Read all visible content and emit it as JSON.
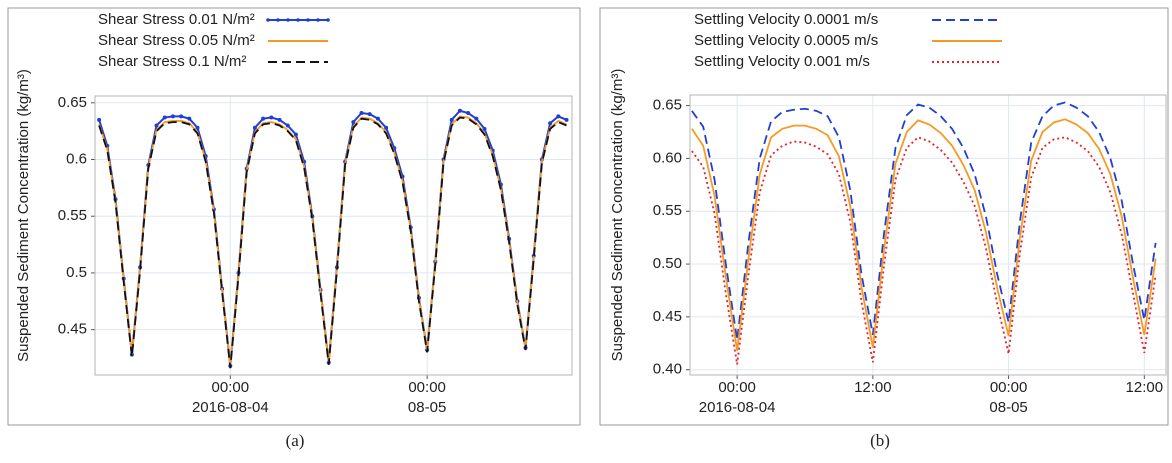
{
  "chart_data": [
    {
      "type": "line",
      "y_label": "Suspended Sediment Concentration (kg/m³)",
      "caption": "(a)",
      "legend": "upper left",
      "grid": true,
      "xlim": [
        "2016-08-03 07:30",
        "2016-08-05 17:40"
      ],
      "ylim": [
        0.41,
        0.656
      ],
      "yticks": [
        0.45,
        0.5,
        0.55,
        0.6,
        0.65
      ],
      "xticks": [
        {
          "value": "2016-08-04 00:00",
          "label": [
            "00:00",
            "2016-08-04"
          ]
        },
        {
          "value": "2016-08-05 00:00",
          "label": [
            "00:00",
            "08-05"
          ]
        }
      ],
      "x": [
        "2016-08-03 08:00",
        "2016-08-03 09:00",
        "2016-08-03 10:00",
        "2016-08-03 11:00",
        "2016-08-03 12:00",
        "2016-08-03 13:00",
        "2016-08-03 14:00",
        "2016-08-03 15:00",
        "2016-08-03 16:00",
        "2016-08-03 17:00",
        "2016-08-03 18:00",
        "2016-08-03 19:00",
        "2016-08-03 20:00",
        "2016-08-03 21:00",
        "2016-08-03 22:00",
        "2016-08-03 23:00",
        "2016-08-04 00:00",
        "2016-08-04 01:00",
        "2016-08-04 02:00",
        "2016-08-04 03:00",
        "2016-08-04 04:00",
        "2016-08-04 05:00",
        "2016-08-04 06:00",
        "2016-08-04 07:00",
        "2016-08-04 08:00",
        "2016-08-04 09:00",
        "2016-08-04 10:00",
        "2016-08-04 11:00",
        "2016-08-04 12:00",
        "2016-08-04 13:00",
        "2016-08-04 14:00",
        "2016-08-04 15:00",
        "2016-08-04 16:00",
        "2016-08-04 17:00",
        "2016-08-04 18:00",
        "2016-08-04 19:00",
        "2016-08-04 20:00",
        "2016-08-04 21:00",
        "2016-08-04 22:00",
        "2016-08-04 23:00",
        "2016-08-05 00:00",
        "2016-08-05 01:00",
        "2016-08-05 02:00",
        "2016-08-05 03:00",
        "2016-08-05 04:00",
        "2016-08-05 05:00",
        "2016-08-05 06:00",
        "2016-08-05 07:00",
        "2016-08-05 08:00",
        "2016-08-05 09:00",
        "2016-08-05 10:00",
        "2016-08-05 11:00",
        "2016-08-05 12:00",
        "2016-08-05 13:00",
        "2016-08-05 14:00",
        "2016-08-05 15:00",
        "2016-08-05 16:00",
        "2016-08-05 17:00"
      ],
      "series": [
        {
          "name": "Shear Stress 0.01 N/m²",
          "color": "#1f3fd6",
          "dash": "solid",
          "marker": true,
          "values": [
            0.635,
            0.612,
            0.565,
            0.495,
            0.428,
            0.505,
            0.595,
            0.63,
            0.637,
            0.638,
            0.638,
            0.636,
            0.628,
            0.603,
            0.556,
            0.486,
            0.418,
            0.5,
            0.592,
            0.628,
            0.636,
            0.637,
            0.635,
            0.63,
            0.622,
            0.598,
            0.55,
            0.485,
            0.421,
            0.505,
            0.598,
            0.633,
            0.641,
            0.64,
            0.636,
            0.628,
            0.61,
            0.585,
            0.54,
            0.478,
            0.432,
            0.51,
            0.6,
            0.635,
            0.643,
            0.641,
            0.636,
            0.627,
            0.608,
            0.578,
            0.53,
            0.475,
            0.434,
            0.515,
            0.6,
            0.632,
            0.638,
            0.635
          ]
        },
        {
          "name": "Shear Stress 0.05 N/m²",
          "color": "#f59a23",
          "dash": "solid",
          "marker": false,
          "values": [
            0.631,
            0.609,
            0.563,
            0.494,
            0.428,
            0.504,
            0.593,
            0.626,
            0.633,
            0.634,
            0.634,
            0.632,
            0.624,
            0.599,
            0.554,
            0.485,
            0.418,
            0.499,
            0.59,
            0.624,
            0.632,
            0.633,
            0.631,
            0.626,
            0.618,
            0.594,
            0.548,
            0.484,
            0.421,
            0.504,
            0.596,
            0.629,
            0.637,
            0.636,
            0.632,
            0.624,
            0.606,
            0.581,
            0.538,
            0.477,
            0.432,
            0.509,
            0.598,
            0.631,
            0.638,
            0.637,
            0.632,
            0.623,
            0.604,
            0.574,
            0.528,
            0.474,
            0.434,
            0.514,
            0.598,
            0.628,
            0.634,
            0.631
          ]
        },
        {
          "name": "Shear Stress 0.1  N/m²",
          "color": "#111111",
          "dash": "dashed",
          "marker": false,
          "values": [
            0.63,
            0.608,
            0.562,
            0.492,
            0.426,
            0.502,
            0.592,
            0.625,
            0.632,
            0.633,
            0.633,
            0.631,
            0.623,
            0.598,
            0.553,
            0.483,
            0.416,
            0.497,
            0.589,
            0.623,
            0.631,
            0.632,
            0.63,
            0.625,
            0.617,
            0.593,
            0.547,
            0.482,
            0.419,
            0.502,
            0.595,
            0.628,
            0.636,
            0.635,
            0.631,
            0.623,
            0.605,
            0.58,
            0.537,
            0.475,
            0.43,
            0.507,
            0.597,
            0.63,
            0.637,
            0.636,
            0.631,
            0.622,
            0.603,
            0.573,
            0.527,
            0.472,
            0.432,
            0.512,
            0.597,
            0.627,
            0.633,
            0.63
          ]
        }
      ]
    },
    {
      "type": "line",
      "y_label": "Suspended Sediment Concentration (kg/m³)",
      "caption": "(b)",
      "legend": "upper left",
      "grid": true,
      "xlim": [
        "2016-08-03 19:50",
        "2016-08-05 13:55"
      ],
      "ylim": [
        0.395,
        0.66
      ],
      "yticks": [
        {
          "value": 0.4,
          "label": "0.40"
        },
        {
          "value": 0.45,
          "label": "0.45"
        },
        {
          "value": 0.5,
          "label": "0.50"
        },
        {
          "value": 0.55,
          "label": "0.55"
        },
        {
          "value": 0.6,
          "label": "0.60"
        },
        {
          "value": 0.65,
          "label": "0.65"
        }
      ],
      "xticks": [
        {
          "value": "2016-08-04 00:00",
          "label": [
            "00:00",
            "2016-08-04"
          ]
        },
        {
          "value": "2016-08-04 12:00",
          "label": [
            "12:00"
          ]
        },
        {
          "value": "2016-08-05 00:00",
          "label": [
            "00:00",
            "08-05"
          ]
        },
        {
          "value": "2016-08-05 12:00",
          "label": [
            "12:00"
          ]
        }
      ],
      "x": [
        "2016-08-03 20:00",
        "2016-08-03 21:00",
        "2016-08-03 22:00",
        "2016-08-03 23:00",
        "2016-08-04 00:00",
        "2016-08-04 01:00",
        "2016-08-04 02:00",
        "2016-08-04 03:00",
        "2016-08-04 04:00",
        "2016-08-04 05:00",
        "2016-08-04 06:00",
        "2016-08-04 07:00",
        "2016-08-04 08:00",
        "2016-08-04 09:00",
        "2016-08-04 10:00",
        "2016-08-04 11:00",
        "2016-08-04 12:00",
        "2016-08-04 13:00",
        "2016-08-04 14:00",
        "2016-08-04 15:00",
        "2016-08-04 16:00",
        "2016-08-04 17:00",
        "2016-08-04 18:00",
        "2016-08-04 19:00",
        "2016-08-04 20:00",
        "2016-08-04 21:00",
        "2016-08-04 22:00",
        "2016-08-04 23:00",
        "2016-08-05 00:00",
        "2016-08-05 01:00",
        "2016-08-05 02:00",
        "2016-08-05 03:00",
        "2016-08-05 04:00",
        "2016-08-05 05:00",
        "2016-08-05 06:00",
        "2016-08-05 07:00",
        "2016-08-05 08:00",
        "2016-08-05 09:00",
        "2016-08-05 10:00",
        "2016-08-05 11:00",
        "2016-08-05 12:00",
        "2016-08-05 13:00"
      ],
      "series": [
        {
          "name": "Settling Velocity 0.0001 m/s",
          "color": "#1f3fd6",
          "dash": "dashed",
          "marker": false,
          "values": [
            0.645,
            0.63,
            0.58,
            0.5,
            0.428,
            0.52,
            0.6,
            0.635,
            0.644,
            0.646,
            0.647,
            0.645,
            0.64,
            0.62,
            0.57,
            0.49,
            0.433,
            0.53,
            0.61,
            0.641,
            0.651,
            0.648,
            0.64,
            0.628,
            0.61,
            0.585,
            0.545,
            0.49,
            0.445,
            0.54,
            0.615,
            0.64,
            0.65,
            0.653,
            0.648,
            0.64,
            0.625,
            0.6,
            0.56,
            0.5,
            0.447,
            0.52
          ]
        },
        {
          "name": "Settling Velocity 0.0005 m/s",
          "color": "#f59a23",
          "dash": "solid",
          "marker": false,
          "values": [
            0.628,
            0.612,
            0.565,
            0.488,
            0.418,
            0.505,
            0.585,
            0.62,
            0.628,
            0.631,
            0.631,
            0.628,
            0.622,
            0.602,
            0.555,
            0.478,
            0.421,
            0.515,
            0.595,
            0.625,
            0.636,
            0.632,
            0.624,
            0.612,
            0.594,
            0.57,
            0.53,
            0.477,
            0.432,
            0.525,
            0.598,
            0.625,
            0.634,
            0.637,
            0.632,
            0.624,
            0.609,
            0.585,
            0.545,
            0.487,
            0.433,
            0.505
          ]
        },
        {
          "name": "Settling Velocity 0.001 m/s",
          "color": "#e8202a",
          "dash": "dotted",
          "marker": false,
          "values": [
            0.607,
            0.592,
            0.548,
            0.472,
            0.405,
            0.49,
            0.568,
            0.603,
            0.612,
            0.616,
            0.615,
            0.611,
            0.604,
            0.585,
            0.54,
            0.464,
            0.407,
            0.5,
            0.58,
            0.61,
            0.62,
            0.616,
            0.608,
            0.596,
            0.578,
            0.555,
            0.515,
            0.462,
            0.415,
            0.51,
            0.582,
            0.61,
            0.618,
            0.62,
            0.615,
            0.607,
            0.592,
            0.568,
            0.528,
            0.472,
            0.416,
            0.49
          ]
        }
      ]
    }
  ]
}
